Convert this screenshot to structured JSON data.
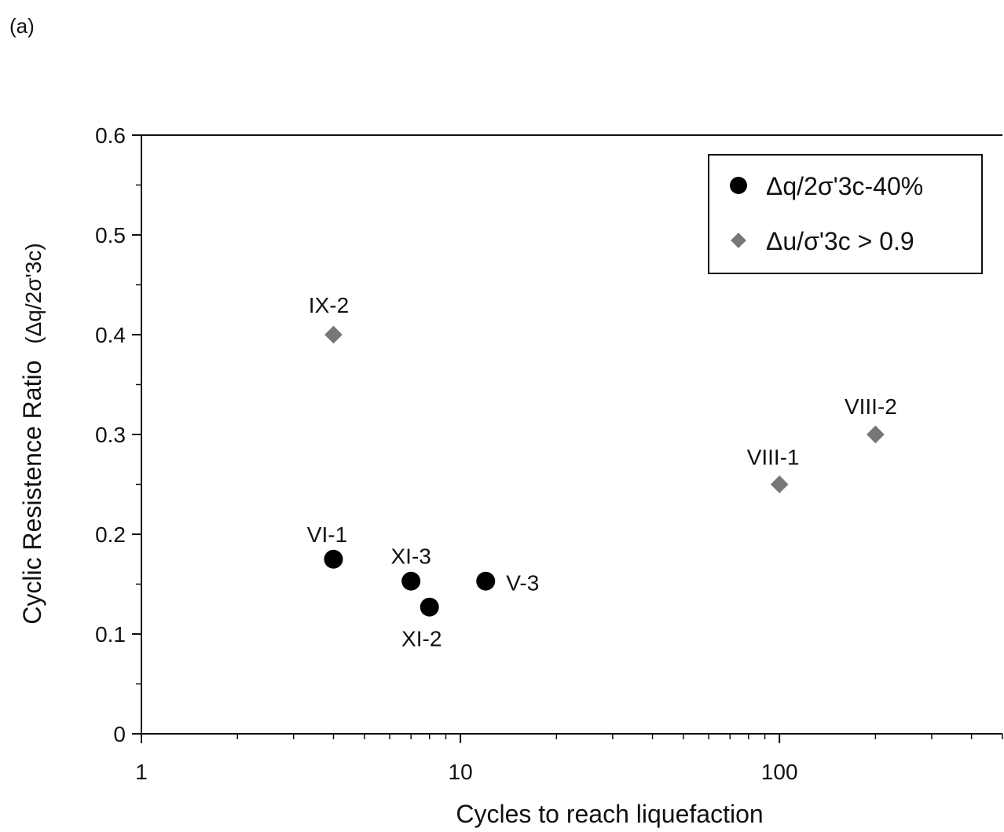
{
  "panel_label": "(a)",
  "chart_data": {
    "type": "scatter",
    "x_scale": "log",
    "xlabel": "Cycles to reach liquefaction",
    "ylabel_main": "Cyclic Resistence Ratio",
    "ylabel_paren": "(Δq/2σ'3c)",
    "xlim": [
      1,
      500
    ],
    "ylim": [
      0,
      0.6
    ],
    "x_ticks": [
      {
        "value": 1,
        "label": "1"
      },
      {
        "value": 10,
        "label": "10"
      },
      {
        "value": 100,
        "label": "100"
      }
    ],
    "y_ticks": [
      {
        "value": 0,
        "label": "0"
      },
      {
        "value": 0.1,
        "label": "0.1"
      },
      {
        "value": 0.2,
        "label": "0.2"
      },
      {
        "value": 0.3,
        "label": "0.3"
      },
      {
        "value": 0.4,
        "label": "0.4"
      },
      {
        "value": 0.5,
        "label": "0.5"
      },
      {
        "value": 0.6,
        "label": "0.6"
      }
    ],
    "legend_position": "top-right",
    "series": [
      {
        "name": "Δq/2σ'3c-40%",
        "marker": "circle",
        "color": "#000000",
        "points": [
          {
            "label": "VI-1",
            "x": 4,
            "y": 0.175
          },
          {
            "label": "XI-3",
            "x": 7,
            "y": 0.153
          },
          {
            "label": "XI-2",
            "x": 8,
            "y": 0.127
          },
          {
            "label": "V-3",
            "x": 12,
            "y": 0.153
          }
        ]
      },
      {
        "name": "Δu/σ'3c > 0.9",
        "marker": "diamond",
        "color": "#777777",
        "points": [
          {
            "label": "IX-2",
            "x": 4,
            "y": 0.4
          },
          {
            "label": "VIII-1",
            "x": 100,
            "y": 0.25
          },
          {
            "label": "VIII-2",
            "x": 200,
            "y": 0.3
          }
        ]
      }
    ]
  }
}
